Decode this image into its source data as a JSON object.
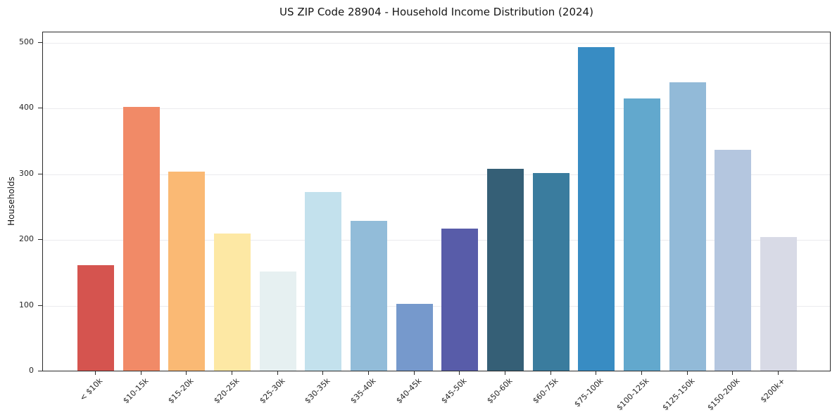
{
  "chart_data": {
    "type": "bar",
    "title": "US ZIP Code 28904 - Household Income Distribution (2024)",
    "xlabel": "",
    "ylabel": "Households",
    "ylim": [
      0,
      500
    ],
    "yticks": [
      0,
      100,
      200,
      300,
      400,
      500
    ],
    "grid": "horizontal",
    "legend": "none",
    "bar_width_ratio": 0.8,
    "categories": [
      "< $10k",
      "$10-15k",
      "$15-20k",
      "$20-25k",
      "$25-30k",
      "$30-35k",
      "$35-40k",
      "$40-45k",
      "$45-50k",
      "$50-60k",
      "$60-75k",
      "$75-100k",
      "$100-125k",
      "$125-150k",
      "$150-200k",
      "$200k+"
    ],
    "values": [
      161,
      402,
      303,
      209,
      151,
      272,
      228,
      102,
      216,
      307,
      301,
      492,
      414,
      439,
      336,
      203
    ],
    "bar_colors": [
      "#d5544f",
      "#f18a67",
      "#fab974",
      "#fde8a4",
      "#e6f0f1",
      "#c3e1ed",
      "#92bcd9",
      "#7699cc",
      "#585ca9",
      "#355f76",
      "#3a7c9e",
      "#388cc3",
      "#62a8cd",
      "#92bad8",
      "#b4c6df",
      "#d8dae6"
    ]
  }
}
